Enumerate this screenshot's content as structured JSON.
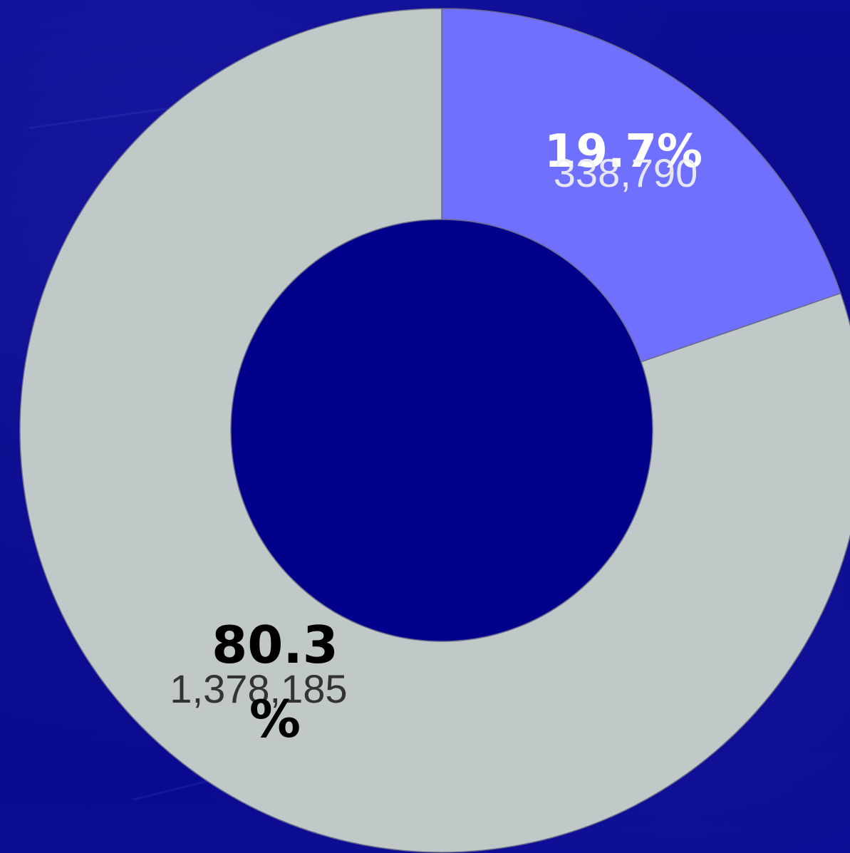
{
  "chart_data": {
    "type": "pie",
    "variant": "donut",
    "slices": [
      {
        "value": 338790,
        "value_label": "338,790",
        "percent_label": "19.7%",
        "color": "#7070ff",
        "label_color": "#ffffff",
        "value_label_color": "#f2f2f2"
      },
      {
        "value": 1378185,
        "value_label": "1,378,185",
        "percent_label_line1": "80.3",
        "percent_label_line2": "%",
        "color": "#c0c8c8",
        "label_color": "#000000",
        "value_label_color": "#333333"
      }
    ],
    "start_angle_deg": 0,
    "direction": "clockwise"
  },
  "colors": {
    "background": "#0a0a8e",
    "hole": "#00008b",
    "slice_border": "#6a6a8a"
  }
}
